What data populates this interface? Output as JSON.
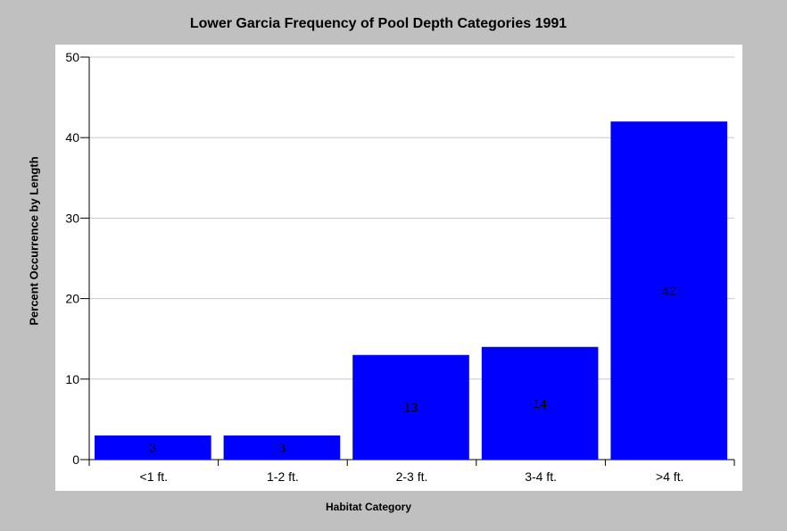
{
  "chart_data": {
    "type": "bar",
    "title": "Lower Garcia Frequency of Pool Depth Categories 1991",
    "xlabel": "Habitat Category",
    "ylabel": "Percent Occurrence by Length",
    "categories": [
      "<1 ft.",
      "1-2 ft.",
      "2-3 ft.",
      "3-4 ft.",
      ">4 ft."
    ],
    "values": [
      3,
      3,
      13,
      14,
      42
    ],
    "data_labels": [
      "3",
      "3",
      "13",
      "14",
      "42"
    ],
    "ylim": [
      0,
      50
    ],
    "yticks": [
      0,
      10,
      20,
      30,
      40,
      50
    ],
    "grid": true,
    "bar_color": "#0000ff",
    "background_color": "#c0c0c0",
    "plot_background": "#ffffff"
  }
}
